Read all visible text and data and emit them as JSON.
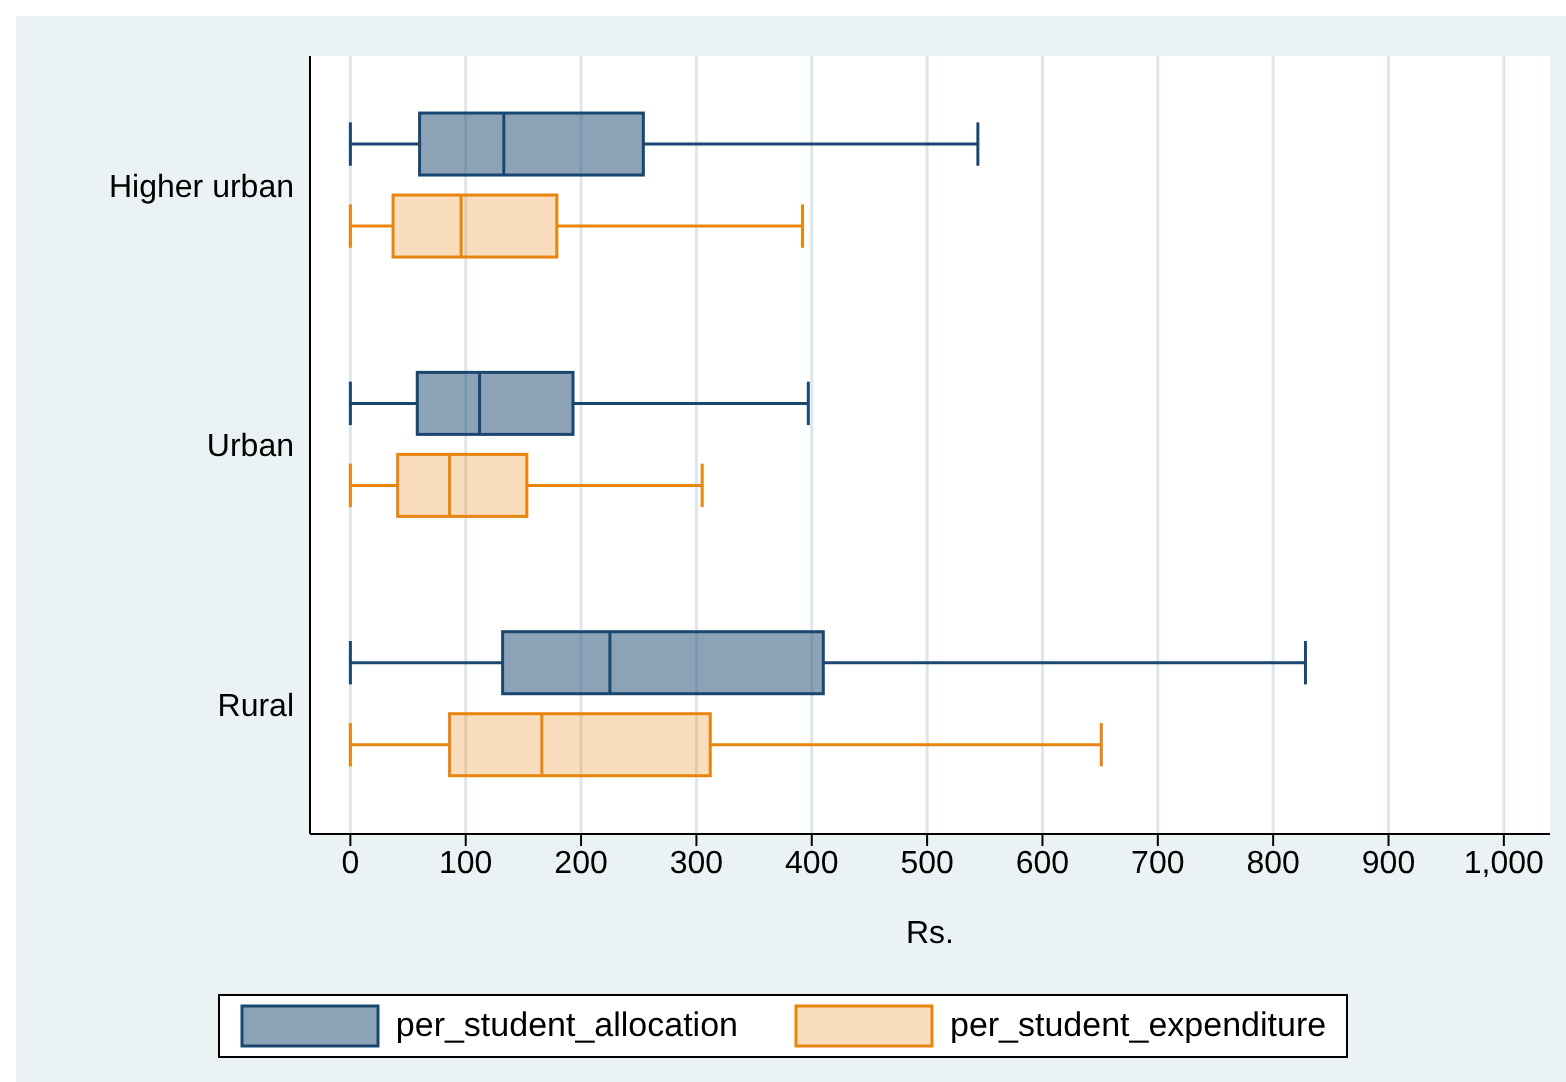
{
  "chart_data": {
    "type": "box",
    "orientation": "horizontal",
    "xlabel": "Rs.",
    "categories": [
      "Higher urban",
      "Urban",
      "Rural"
    ],
    "xlim": [
      -35,
      1040
    ],
    "xticks": [
      0,
      100,
      200,
      300,
      400,
      500,
      600,
      700,
      800,
      900,
      {
        "value": 1000,
        "label": "1,000"
      }
    ],
    "grid": "x",
    "legend": "bottom",
    "series": [
      {
        "name": "per_student_allocation",
        "color": "#1a476f",
        "boxes": [
          {
            "low": 0,
            "q1": 60,
            "median": 133,
            "q3": 254,
            "high": 544
          },
          {
            "low": 0,
            "q1": 58,
            "median": 112,
            "q3": 193,
            "high": 397
          },
          {
            "low": 0,
            "q1": 132,
            "median": 225,
            "q3": 410,
            "high": 828
          }
        ]
      },
      {
        "name": "per_student_expenditure",
        "color": "#e8850f",
        "boxes": [
          {
            "low": 0,
            "q1": 37,
            "median": 96,
            "q3": 179,
            "high": 392
          },
          {
            "low": 0,
            "q1": 41,
            "median": 86,
            "q3": 153,
            "high": 305
          },
          {
            "low": 0,
            "q1": 86,
            "median": 166,
            "q3": 312,
            "high": 651
          }
        ]
      }
    ]
  }
}
